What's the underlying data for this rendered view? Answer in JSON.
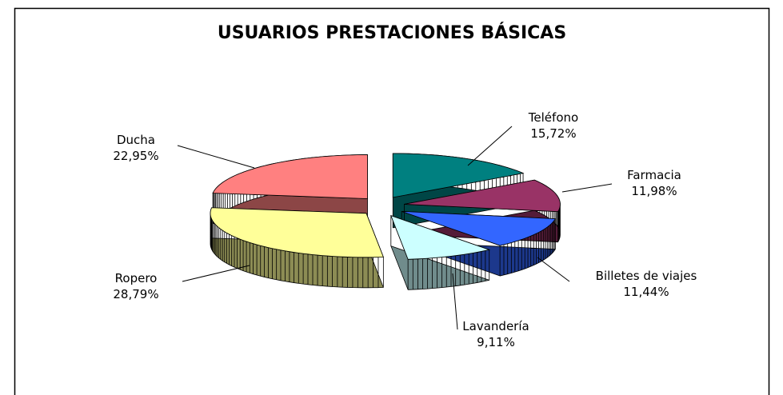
{
  "chart_data": {
    "type": "pie3d",
    "title": "USUARIOS PRESTACIONES BÁSICAS",
    "categories": [
      "Teléfono",
      "Farmacia",
      "Billetes de viajes",
      "Lavandería",
      "Ropero",
      "Ducha"
    ],
    "values": [
      15.72,
      11.98,
      11.44,
      9.11,
      28.79,
      22.95
    ],
    "value_labels": [
      "15,72%",
      "11,98%",
      "11,44%",
      "9,11%",
      "28,79%",
      "22,95%"
    ],
    "colors": [
      "#008080",
      "#993366",
      "#3366ff",
      "#ccffff",
      "#ffff99",
      "#ff8080"
    ]
  }
}
